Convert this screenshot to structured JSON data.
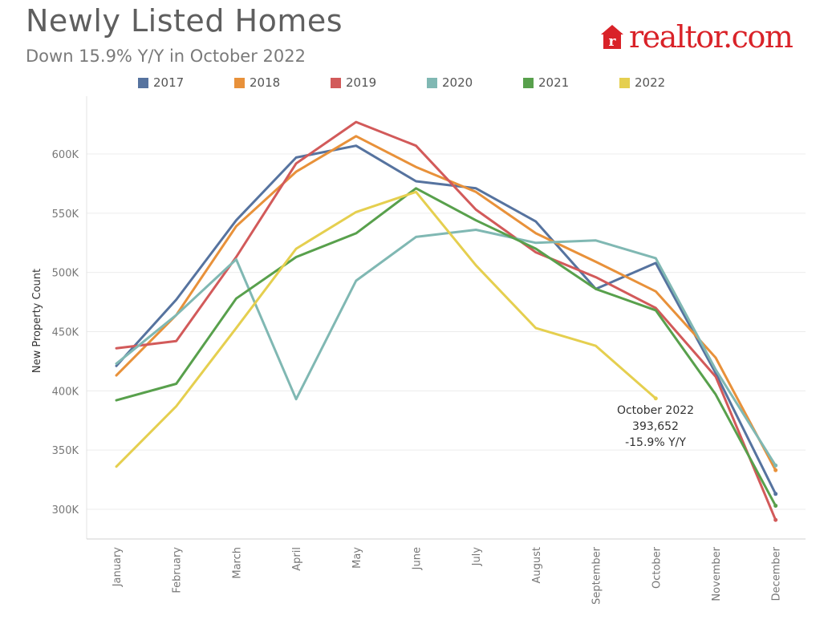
{
  "header": {
    "title": "Newly Listed Homes",
    "subtitle": "Down 15.9% Y/Y in October 2022"
  },
  "logo": {
    "text": "realtor.com",
    "mark_letter": "r",
    "color": "#d92228"
  },
  "annotation": {
    "line1": "October 2022",
    "line2": "393,652",
    "line3": "-15.9% Y/Y"
  },
  "chart_data": {
    "type": "line",
    "title": "Newly Listed Homes",
    "subtitle": "Down 15.9% Y/Y in October 2022",
    "xlabel": "",
    "ylabel": "New Property Count",
    "ylim": [
      270000,
      635000
    ],
    "yticks": [
      300000,
      350000,
      400000,
      450000,
      500000,
      550000,
      600000
    ],
    "ytick_labels": [
      "300K",
      "350K",
      "400K",
      "450K",
      "500K",
      "550K",
      "600K"
    ],
    "grid": "horizontal",
    "legend_position": "top",
    "categories": [
      "January",
      "February",
      "March",
      "April",
      "May",
      "June",
      "July",
      "August",
      "September",
      "October",
      "November",
      "December"
    ],
    "series": [
      {
        "name": "2017",
        "color": "#56739f",
        "values": [
          421000,
          477000,
          544000,
          597000,
          607000,
          577000,
          571000,
          543000,
          486000,
          508000,
          415000,
          313000
        ]
      },
      {
        "name": "2018",
        "color": "#e8913a",
        "values": [
          413000,
          464000,
          539000,
          585000,
          615000,
          589000,
          568000,
          533000,
          509000,
          484000,
          428000,
          333000
        ]
      },
      {
        "name": "2019",
        "color": "#d25a5a",
        "values": [
          436000,
          442000,
          513000,
          592000,
          627000,
          607000,
          553000,
          517000,
          496000,
          470000,
          412000,
          291000
        ]
      },
      {
        "name": "2020",
        "color": "#80b8b3",
        "values": [
          423000,
          464000,
          511000,
          393000,
          493000,
          530000,
          536000,
          525000,
          527000,
          512000,
          418000,
          337000
        ]
      },
      {
        "name": "2021",
        "color": "#58a04c",
        "values": [
          392000,
          406000,
          478000,
          513000,
          533000,
          571000,
          544000,
          520000,
          486000,
          468000,
          397000,
          303000
        ]
      },
      {
        "name": "2022",
        "color": "#e5cf4f",
        "values": [
          336000,
          387000,
          453000,
          520000,
          551000,
          568000,
          506000,
          453000,
          438000,
          393652,
          null,
          null
        ]
      }
    ]
  }
}
